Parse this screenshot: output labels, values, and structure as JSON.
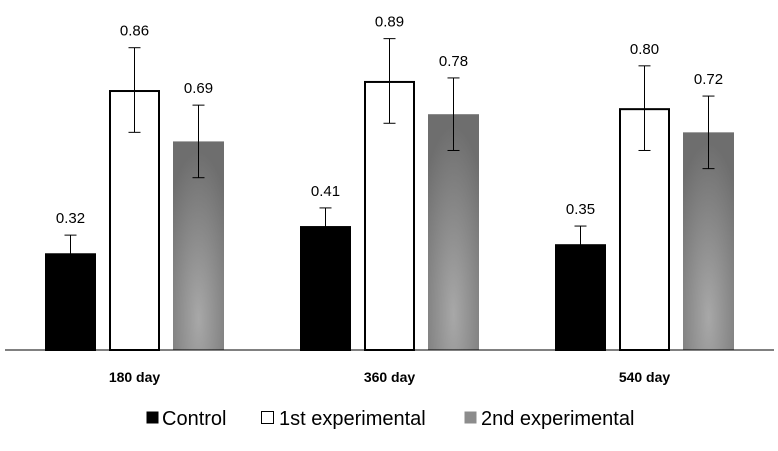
{
  "chart_data": {
    "type": "bar",
    "title": "",
    "xlabel": "",
    "ylabel": "",
    "ylim": [
      0,
      1.0
    ],
    "grid": false,
    "legend_position": "bottom",
    "categories": [
      "180 day",
      "360 day",
      "540 day"
    ],
    "series": [
      {
        "name": "Control",
        "values": [
          0.32,
          0.41,
          0.35
        ],
        "labels": [
          "0.32",
          "0.41",
          "0.35"
        ],
        "errors": [
          0.06,
          0.06,
          0.06
        ],
        "fill": "#000000",
        "stroke": "#000000"
      },
      {
        "name": "1st experimental",
        "values": [
          0.86,
          0.89,
          0.8
        ],
        "labels": [
          "0.86",
          "0.89",
          "0.80"
        ],
        "errors": [
          0.14,
          0.14,
          0.14
        ],
        "fill": "#ffffff",
        "stroke": "#000000"
      },
      {
        "name": "2nd experimental",
        "values": [
          0.69,
          0.78,
          0.72
        ],
        "labels": [
          "0.69",
          "0.78",
          "0.72"
        ],
        "errors": [
          0.12,
          0.12,
          0.12
        ],
        "fill": "#8c8c8c",
        "stroke": "none"
      }
    ]
  }
}
